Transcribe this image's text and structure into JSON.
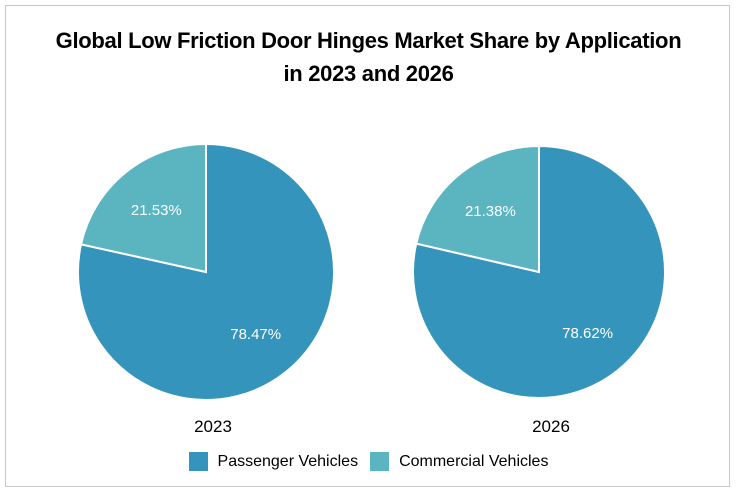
{
  "chart_data": {
    "type": "pie",
    "title": "Global Low Friction Door Hinges Market Share by Application in 2023 and 2026",
    "title_lines": [
      "Global Low Friction Door Hinges Market Share by Application",
      "in 2023 and 2026"
    ],
    "legend": {
      "position": "bottom",
      "entries": [
        "Passenger Vehicles",
        "Commercial Vehicles"
      ]
    },
    "colors": {
      "Passenger Vehicles": "#3594bb",
      "Commercial Vehicles": "#5ab5c0"
    },
    "charts": [
      {
        "label": "2023",
        "categories": [
          "Passenger Vehicles",
          "Commercial Vehicles"
        ],
        "values": [
          78.47,
          21.53
        ],
        "value_labels": [
          "78.47%",
          "21.53%"
        ]
      },
      {
        "label": "2026",
        "categories": [
          "Passenger Vehicles",
          "Commercial Vehicles"
        ],
        "values": [
          78.62,
          21.38
        ],
        "value_labels": [
          "78.62%",
          "21.38%"
        ]
      }
    ]
  }
}
